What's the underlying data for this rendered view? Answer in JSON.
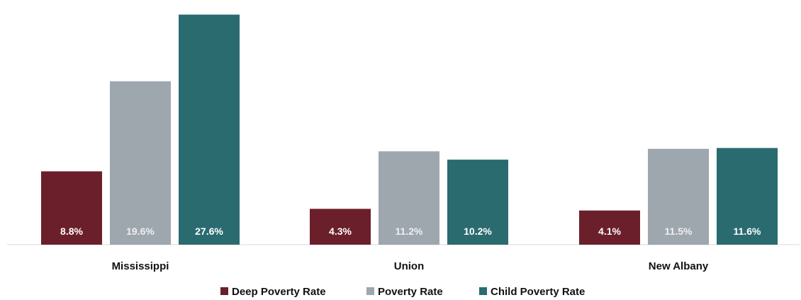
{
  "chart_data": {
    "type": "bar",
    "title": "",
    "xlabel": "",
    "ylabel": "",
    "ylim": [
      0,
      28.5
    ],
    "grid": false,
    "legend_position": "bottom",
    "categories": [
      "Mississippi",
      "Union",
      "New Albany"
    ],
    "series": [
      {
        "name": "Deep Poverty Rate",
        "color": "#6b1f2a",
        "label_color": "#ffffff",
        "values": [
          8.8,
          4.3,
          4.1
        ],
        "labels": [
          "8.8%",
          "4.3%",
          "4.1%"
        ]
      },
      {
        "name": "Poverty Rate",
        "color": "#9ea6ae",
        "label_color": "#eef0f2",
        "values": [
          19.6,
          11.2,
          11.5
        ],
        "labels": [
          "19.6%",
          "11.2%",
          "11.5%"
        ]
      },
      {
        "name": "Child Poverty Rate",
        "color": "#2a6b70",
        "label_color": "#ffffff",
        "values": [
          27.6,
          10.2,
          11.6
        ],
        "labels": [
          "27.6%",
          "10.2%",
          "11.6%"
        ]
      }
    ]
  }
}
